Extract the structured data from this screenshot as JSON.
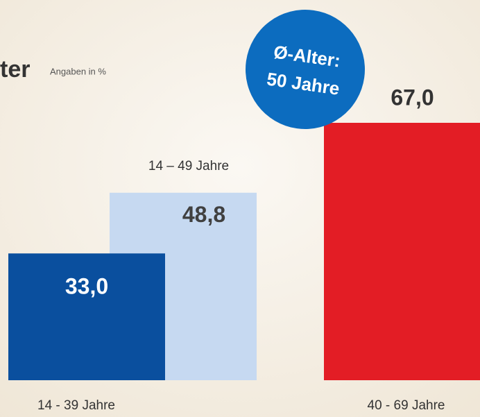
{
  "chart_data": {
    "type": "bar",
    "title": "ter",
    "subtitle": "Angaben in %",
    "annotation": [
      "Ø-Alter:",
      "50 Jahre"
    ],
    "categories": [
      "14 - 39 Jahre",
      "14 – 49 Jahre",
      "40 - 69 Jahre"
    ],
    "values": [
      33.0,
      48.8,
      67.0
    ],
    "value_labels": [
      "33,0",
      "48,8",
      "67,0"
    ],
    "colors": [
      "#0a4f9e",
      "#c6d9f1",
      "#e31d25"
    ],
    "annotation_color": "#0c6cbf"
  }
}
